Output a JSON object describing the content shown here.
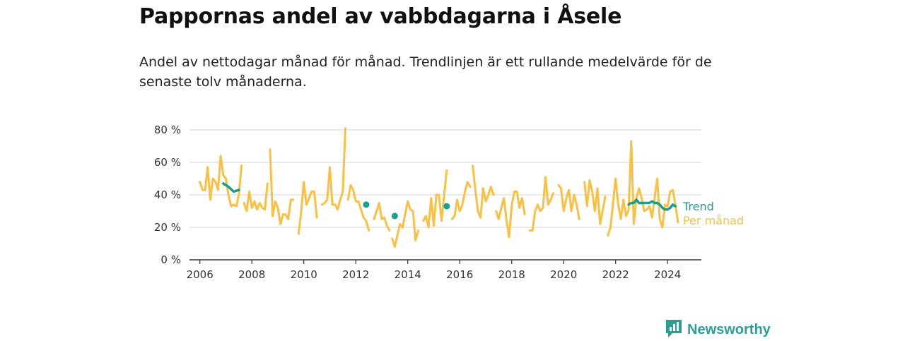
{
  "title": "Pappornas andel av vabbdagarna i Åsele",
  "subtitle": "Andel av nettodagar månad för månad. Trendlinjen är ett rullande medelvärde för de senaste tolv månaderna.",
  "brand": "Newsworthy",
  "colors": {
    "monthly": "#f9c043",
    "trend": "#17a090",
    "grid": "#dddddd",
    "axis": "#333333",
    "brand": "#2e9e93"
  },
  "chart_data": {
    "type": "line",
    "xlim": [
      2005.6,
      2025.3
    ],
    "ylim": [
      0,
      80
    ],
    "x_ticks": [
      {
        "value": 2006,
        "label": "2006"
      },
      {
        "value": 2008,
        "label": "2008"
      },
      {
        "value": 2010,
        "label": "2010"
      },
      {
        "value": 2012,
        "label": "2012"
      },
      {
        "value": 2014,
        "label": "2014"
      },
      {
        "value": 2016,
        "label": "2016"
      },
      {
        "value": 2018,
        "label": "2018"
      },
      {
        "value": 2020,
        "label": "2020"
      },
      {
        "value": 2022,
        "label": "2022"
      },
      {
        "value": 2024,
        "label": "2024"
      }
    ],
    "y_ticks": [
      {
        "value": 0,
        "label": "0 %"
      },
      {
        "value": 20,
        "label": "20 %"
      },
      {
        "value": 40,
        "label": "40 %"
      },
      {
        "value": 60,
        "label": "60 %"
      },
      {
        "value": 80,
        "label": "80 %"
      }
    ],
    "grid": true,
    "series": [
      {
        "name": "Per månad",
        "segments": [
          [
            [
              2006.0,
              48
            ],
            [
              2006.1,
              43
            ],
            [
              2006.2,
              43
            ],
            [
              2006.3,
              57
            ],
            [
              2006.4,
              37
            ],
            [
              2006.5,
              50
            ],
            [
              2006.6,
              48
            ],
            [
              2006.7,
              43
            ],
            [
              2006.8,
              64
            ],
            [
              2006.9,
              52
            ],
            [
              2007.0,
              50
            ],
            [
              2007.1,
              40
            ],
            [
              2007.2,
              33
            ],
            [
              2007.3,
              34
            ],
            [
              2007.4,
              33
            ],
            [
              2007.5,
              40
            ],
            [
              2007.6,
              58
            ]
          ],
          [
            [
              2007.7,
              35
            ],
            [
              2007.8,
              30
            ],
            [
              2007.9,
              42
            ],
            [
              2008.0,
              32
            ],
            [
              2008.1,
              36
            ],
            [
              2008.2,
              31
            ],
            [
              2008.3,
              35
            ],
            [
              2008.4,
              32
            ],
            [
              2008.5,
              31
            ],
            [
              2008.6,
              47
            ]
          ],
          [
            [
              2008.7,
              68
            ],
            [
              2008.8,
              27
            ],
            [
              2008.9,
              36
            ],
            [
              2009.0,
              32
            ],
            [
              2009.1,
              22
            ],
            [
              2009.2,
              28
            ],
            [
              2009.3,
              28
            ],
            [
              2009.4,
              25
            ],
            [
              2009.5,
              37
            ],
            [
              2009.6,
              37
            ]
          ],
          [
            [
              2009.8,
              16
            ],
            [
              2009.9,
              30
            ],
            [
              2010.0,
              48
            ],
            [
              2010.1,
              34
            ],
            [
              2010.2,
              38
            ],
            [
              2010.3,
              42
            ],
            [
              2010.4,
              42
            ],
            [
              2010.5,
              26
            ]
          ],
          [
            [
              2010.7,
              34
            ],
            [
              2010.8,
              35
            ],
            [
              2010.9,
              37
            ],
            [
              2011.0,
              57
            ],
            [
              2011.1,
              34
            ],
            [
              2011.2,
              34
            ],
            [
              2011.3,
              31
            ],
            [
              2011.4,
              37
            ],
            [
              2011.5,
              42
            ],
            [
              2011.6,
              81
            ]
          ],
          [
            [
              2011.7,
              37
            ],
            [
              2011.8,
              46
            ],
            [
              2011.9,
              43
            ],
            [
              2012.0,
              36
            ],
            [
              2012.1,
              36
            ],
            [
              2012.2,
              31
            ],
            [
              2012.3,
              26
            ],
            [
              2012.4,
              24
            ],
            [
              2012.5,
              18
            ]
          ],
          [
            [
              2012.7,
              25
            ],
            [
              2012.8,
              30
            ],
            [
              2012.9,
              35
            ],
            [
              2013.0,
              25
            ],
            [
              2013.1,
              26
            ],
            [
              2013.2,
              21
            ],
            [
              2013.3,
              18
            ]
          ],
          [
            [
              2013.4,
              13
            ],
            [
              2013.5,
              8
            ],
            [
              2013.6,
              15
            ],
            [
              2013.7,
              22
            ],
            [
              2013.8,
              20
            ],
            [
              2013.9,
              28
            ],
            [
              2014.0,
              36
            ],
            [
              2014.1,
              31
            ],
            [
              2014.2,
              30
            ],
            [
              2014.3,
              12
            ],
            [
              2014.4,
              18
            ]
          ],
          [
            [
              2014.6,
              24
            ],
            [
              2014.7,
              27
            ],
            [
              2014.8,
              20
            ],
            [
              2014.9,
              38
            ],
            [
              2015.0,
              21
            ],
            [
              2015.1,
              40
            ],
            [
              2015.2,
              40
            ],
            [
              2015.3,
              24
            ],
            [
              2015.4,
              40
            ],
            [
              2015.5,
              55
            ]
          ],
          [
            [
              2015.7,
              25
            ],
            [
              2015.8,
              27
            ],
            [
              2015.9,
              37
            ],
            [
              2016.0,
              30
            ],
            [
              2016.1,
              34
            ],
            [
              2016.2,
              42
            ],
            [
              2016.3,
              48
            ],
            [
              2016.4,
              45
            ]
          ],
          [
            [
              2016.5,
              58
            ],
            [
              2016.6,
              43
            ],
            [
              2016.7,
              30
            ],
            [
              2016.8,
              26
            ],
            [
              2016.9,
              44
            ],
            [
              2017.0,
              36
            ],
            [
              2017.1,
              40
            ],
            [
              2017.2,
              45
            ],
            [
              2017.3,
              40
            ]
          ],
          [
            [
              2017.4,
              30
            ],
            [
              2017.5,
              25
            ],
            [
              2017.6,
              32
            ],
            [
              2017.7,
              38
            ],
            [
              2017.8,
              24
            ],
            [
              2017.9,
              14
            ],
            [
              2018.0,
              33
            ],
            [
              2018.1,
              42
            ],
            [
              2018.2,
              42
            ],
            [
              2018.3,
              32
            ],
            [
              2018.4,
              38
            ],
            [
              2018.5,
              28
            ]
          ],
          [
            [
              2018.7,
              18
            ],
            [
              2018.8,
              18
            ],
            [
              2018.9,
              30
            ],
            [
              2019.0,
              34
            ],
            [
              2019.1,
              30
            ],
            [
              2019.2,
              32
            ],
            [
              2019.3,
              51
            ],
            [
              2019.4,
              34
            ],
            [
              2019.5,
              37
            ],
            [
              2019.6,
              41
            ]
          ],
          [
            [
              2019.8,
              46
            ],
            [
              2019.9,
              44
            ],
            [
              2020.0,
              30
            ],
            [
              2020.1,
              38
            ],
            [
              2020.2,
              43
            ],
            [
              2020.3,
              30
            ],
            [
              2020.4,
              40
            ],
            [
              2020.5,
              34
            ],
            [
              2020.6,
              25
            ]
          ],
          [
            [
              2020.8,
              48
            ],
            [
              2020.9,
              33
            ],
            [
              2021.0,
              49
            ],
            [
              2021.1,
              42
            ],
            [
              2021.2,
              30
            ],
            [
              2021.3,
              44
            ],
            [
              2021.4,
              22
            ],
            [
              2021.5,
              30
            ],
            [
              2021.6,
              39
            ]
          ],
          [
            [
              2021.7,
              15
            ],
            [
              2021.8,
              20
            ],
            [
              2021.9,
              35
            ],
            [
              2022.0,
              50
            ],
            [
              2022.1,
              34
            ],
            [
              2022.2,
              25
            ],
            [
              2022.3,
              37
            ],
            [
              2022.4,
              27
            ],
            [
              2022.5,
              31
            ],
            [
              2022.6,
              73
            ],
            [
              2022.7,
              22
            ],
            [
              2022.8,
              38
            ],
            [
              2022.9,
              44
            ],
            [
              2023.0,
              38
            ],
            [
              2023.1,
              30
            ],
            [
              2023.2,
              31
            ],
            [
              2023.3,
              33
            ],
            [
              2023.4,
              26
            ],
            [
              2023.5,
              38
            ],
            [
              2023.6,
              50
            ],
            [
              2023.7,
              25
            ],
            [
              2023.8,
              20
            ],
            [
              2023.9,
              34
            ],
            [
              2024.0,
              33
            ],
            [
              2024.1,
              42
            ],
            [
              2024.2,
              43
            ],
            [
              2024.3,
              34
            ],
            [
              2024.4,
              23
            ]
          ]
        ]
      },
      {
        "name": "Trend",
        "segments": [
          [
            [
              2006.9,
              47
            ],
            [
              2007.1,
              45
            ],
            [
              2007.3,
              42
            ],
            [
              2007.5,
              43
            ]
          ],
          [
            [
              2012.4,
              34
            ]
          ],
          [
            [
              2013.5,
              27
            ]
          ],
          [
            [
              2015.5,
              33
            ]
          ],
          [
            [
              2022.5,
              34
            ],
            [
              2022.6,
              35
            ],
            [
              2022.7,
              35
            ],
            [
              2022.8,
              37
            ],
            [
              2022.9,
              35
            ],
            [
              2023.0,
              35
            ],
            [
              2023.1,
              35
            ],
            [
              2023.2,
              35
            ],
            [
              2023.3,
              35
            ],
            [
              2023.4,
              36
            ],
            [
              2023.5,
              35
            ],
            [
              2023.6,
              35
            ],
            [
              2023.7,
              34
            ],
            [
              2023.8,
              32
            ],
            [
              2023.9,
              31
            ],
            [
              2024.0,
              31
            ],
            [
              2024.1,
              32
            ],
            [
              2024.2,
              34
            ],
            [
              2024.3,
              33
            ]
          ]
        ]
      }
    ]
  }
}
